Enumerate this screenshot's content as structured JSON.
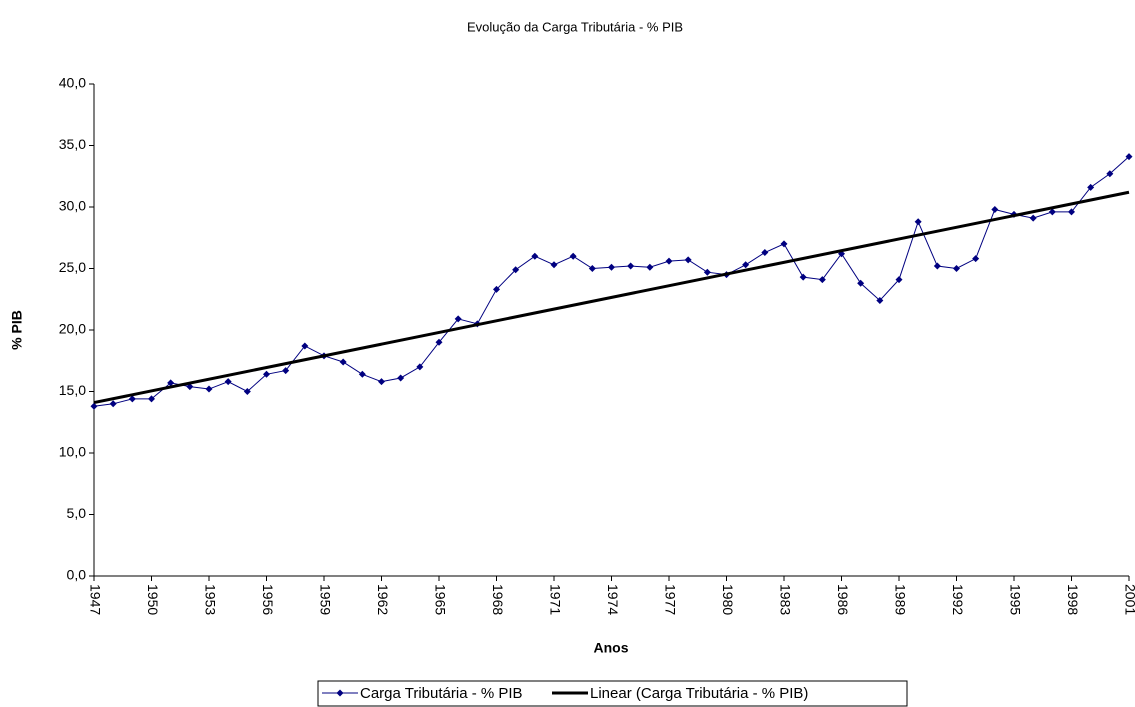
{
  "chart_data": {
    "type": "line",
    "title": "Evolução da Carga Tributária - % PIB",
    "xlabel": "Anos",
    "ylabel": "% PIB",
    "x": [
      1947,
      1948,
      1949,
      1950,
      1951,
      1952,
      1953,
      1954,
      1955,
      1956,
      1957,
      1958,
      1959,
      1960,
      1961,
      1962,
      1963,
      1964,
      1965,
      1966,
      1967,
      1968,
      1969,
      1970,
      1971,
      1972,
      1973,
      1974,
      1975,
      1976,
      1977,
      1978,
      1979,
      1980,
      1981,
      1982,
      1983,
      1984,
      1985,
      1986,
      1987,
      1988,
      1989,
      1990,
      1991,
      1992,
      1993,
      1994,
      1995,
      1996,
      1997,
      1998,
      1999,
      2000,
      2001
    ],
    "series": [
      {
        "name": "Carga Tributária - % PIB",
        "color": "#000080",
        "values": [
          13.8,
          14.0,
          14.4,
          14.4,
          15.7,
          15.4,
          15.2,
          15.8,
          15.0,
          16.4,
          16.7,
          18.7,
          17.9,
          17.4,
          16.4,
          15.8,
          16.1,
          17.0,
          19.0,
          20.9,
          20.5,
          23.3,
          24.9,
          26.0,
          25.3,
          26.0,
          25.0,
          25.1,
          25.2,
          25.1,
          25.6,
          25.7,
          24.7,
          24.5,
          25.3,
          26.3,
          27.0,
          24.3,
          24.1,
          26.2,
          23.8,
          22.4,
          24.1,
          28.8,
          25.2,
          25.0,
          25.8,
          29.8,
          29.4,
          29.1,
          29.6,
          29.6,
          31.6,
          32.7,
          34.1
        ]
      },
      {
        "name": "Linear (Carga Tributária - % PIB)",
        "color": "#000000",
        "x": [
          1947,
          2001
        ],
        "values": [
          14.1,
          31.2
        ]
      }
    ],
    "xlim": [
      1947,
      2001
    ],
    "xticks": [
      1947,
      1950,
      1953,
      1956,
      1959,
      1962,
      1965,
      1968,
      1971,
      1974,
      1977,
      1980,
      1983,
      1986,
      1989,
      1992,
      1995,
      1998,
      2001
    ],
    "ylim": [
      0,
      40
    ],
    "yticks": [
      {
        "value": 0,
        "label": "0,0"
      },
      {
        "value": 5,
        "label": "5,0"
      },
      {
        "value": 10,
        "label": "10,0"
      },
      {
        "value": 15,
        "label": "15,0"
      },
      {
        "value": 20,
        "label": "20,0"
      },
      {
        "value": 25,
        "label": "25,0"
      },
      {
        "value": 30,
        "label": "30,0"
      },
      {
        "value": 35,
        "label": "35,0"
      },
      {
        "value": 40,
        "label": "40,0"
      }
    ],
    "legend": "bottom"
  }
}
